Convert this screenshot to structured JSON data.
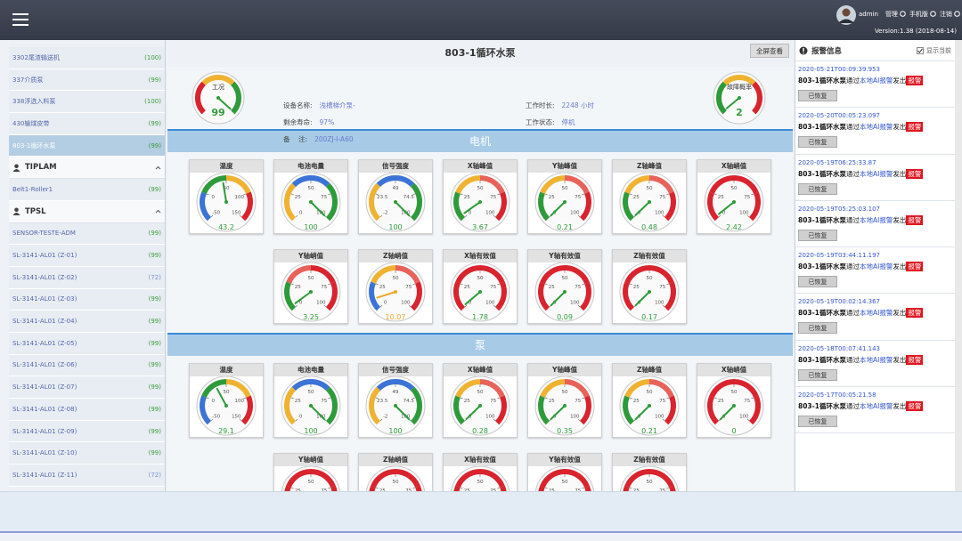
{
  "header": {
    "user": "admin",
    "links": [
      "管理",
      "手机版",
      "注销"
    ],
    "version": "Version:1.38 (2018-08-14)"
  },
  "sidebar": {
    "items": [
      {
        "name": "3302尾渣输送机",
        "count": "(100)"
      },
      {
        "name": "337介质泵",
        "count": "(99)"
      },
      {
        "name": "338浮选入料泵",
        "count": "(100)"
      },
      {
        "name": "430输煤皮带",
        "count": "(99)"
      },
      {
        "name": "803-1循环水泵",
        "count": "(99)",
        "selected": true
      }
    ],
    "groups": [
      {
        "name": "TIPLAM",
        "items": [
          {
            "name": "Belt1-Roller1",
            "count": "(99)"
          }
        ]
      },
      {
        "name": "TPSL",
        "items": [
          {
            "name": "SENSOR-TESTE-ADM",
            "count": "(99)"
          },
          {
            "name": "SL-3141-AL01 (Z-01)",
            "count": "(99)"
          },
          {
            "name": "SL-3141-AL01 (Z-02)",
            "count": "(72)",
            "color": "#7d8fcf"
          },
          {
            "name": "SL-3141-AL01 (Z-03)",
            "count": "(99)"
          },
          {
            "name": "SL-3141-AL01 (Z-04)",
            "count": "(99)"
          },
          {
            "name": "SL-3141-AL01 (Z-05)",
            "count": "(99)"
          },
          {
            "name": "SL-3141-AL01 (Z-06)",
            "count": "(99)"
          },
          {
            "name": "SL-3141-AL01 (Z-07)",
            "count": "(99)"
          },
          {
            "name": "SL-3141-AL01 (Z-08)",
            "count": "(99)"
          },
          {
            "name": "SL-3141-AL01 (Z-09)",
            "count": "(99)"
          },
          {
            "name": "SL-3141-AL01 (Z-10)",
            "count": "(99)"
          },
          {
            "name": "SL-3141-AL01 (Z-11)",
            "count": "(72)",
            "color": "#7d8fcf"
          }
        ]
      }
    ]
  },
  "device": {
    "title": "803-1循环水泵",
    "fullscreen": "全屏查看",
    "fields_left": [
      {
        "label": "设备名称:",
        "value": "浅槽梯介泵-"
      },
      {
        "label": "剩余寿命:",
        "value": "97%"
      },
      {
        "label": "备    注:",
        "value": "200ZJ-I-A60"
      }
    ],
    "fields_right": [
      {
        "label": "工作时长:",
        "value": "2248 小时"
      },
      {
        "label": "工作状态:",
        "value": "停机"
      }
    ],
    "status_gauges": [
      {
        "label": "工况",
        "value": 99,
        "range": [
          0,
          100
        ],
        "bands": [
          "#d9232d",
          "#efb331",
          "#2e9b3a"
        ]
      },
      {
        "label": "故障概率",
        "value": 2,
        "range": [
          0,
          100
        ],
        "bands": [
          "#2e9b3a",
          "#efb331",
          "#d9232d"
        ]
      }
    ]
  },
  "sections": [
    {
      "title": "电机",
      "gauges": [
        {
          "label": "温度",
          "value": 43.2,
          "range": [
            -50,
            150
          ],
          "ticks": [
            -50,
            0,
            50,
            100,
            150
          ],
          "bands": [
            "#3b73d6",
            "#2e9b3a",
            "#efb331",
            "#d9232d"
          ]
        },
        {
          "label": "电池电量",
          "value": 100,
          "range": [
            0,
            100
          ],
          "ticks": [
            0,
            25,
            50,
            75,
            100
          ],
          "bands": [
            "#efb331",
            "#3b73d6",
            "#2e9b3a"
          ]
        },
        {
          "label": "信号强度",
          "value": 100,
          "range": [
            -2,
            100
          ],
          "ticks": [
            -2,
            23.5,
            49,
            74.5,
            100
          ],
          "bands": [
            "#efb331",
            "#3b73d6",
            "#2e9b3a"
          ]
        },
        {
          "label": "X轴峰值",
          "value": 3.67,
          "range": [
            0,
            100
          ],
          "ticks": [
            0,
            25,
            50,
            75,
            100
          ],
          "bands": [
            "#2e9b3a",
            "#efb331",
            "#e8625a",
            "#d9232d"
          ]
        },
        {
          "label": "Y轴峰值",
          "value": 0.21,
          "range": [
            0,
            100
          ],
          "ticks": [
            0,
            25,
            50,
            75,
            100
          ],
          "bands": [
            "#2e9b3a",
            "#efb331",
            "#e8625a",
            "#d9232d"
          ]
        },
        {
          "label": "Z轴峰值",
          "value": 0.48,
          "range": [
            0,
            100
          ],
          "ticks": [
            0,
            25,
            50,
            75,
            100
          ],
          "bands": [
            "#2e9b3a",
            "#efb331",
            "#e8625a",
            "#d9232d"
          ]
        },
        {
          "label": "X轴峭值",
          "value": 2.42,
          "range": [
            0,
            100
          ],
          "ticks": [
            0,
            25,
            50,
            75,
            100
          ],
          "bands": [
            "#d9232d",
            "#d9232d",
            "#d9232d",
            "#d9232d"
          ]
        },
        {
          "label": "Y轴峭值",
          "value": 3.25,
          "range": [
            0,
            100
          ],
          "ticks": [
            0,
            25,
            50,
            75,
            100
          ],
          "bands": [
            "#2e9b3a",
            "#e8625a",
            "#d9232d",
            "#d9232d"
          ]
        },
        {
          "label": "Z轴峭值",
          "value": 10.07,
          "range": [
            0,
            100
          ],
          "ticks": [
            0,
            25,
            50,
            75,
            100
          ],
          "bands": [
            "#3b73d6",
            "#efb331",
            "#e8625a",
            "#d9232d"
          ],
          "color": "#efa92a"
        },
        {
          "label": "X轴有效值",
          "value": 1.78,
          "range": [
            0,
            100
          ],
          "ticks": [
            0,
            25,
            50,
            75,
            100
          ],
          "bands": [
            "#d9232d",
            "#d9232d",
            "#d9232d",
            "#d9232d"
          ]
        },
        {
          "label": "Y轴有效值",
          "value": 0.09,
          "range": [
            0,
            100
          ],
          "ticks": [
            0,
            25,
            50,
            75,
            100
          ],
          "bands": [
            "#d9232d",
            "#d9232d",
            "#d9232d",
            "#d9232d"
          ]
        },
        {
          "label": "Z轴有效值",
          "value": 0.17,
          "range": [
            0,
            100
          ],
          "ticks": [
            0,
            25,
            50,
            75,
            100
          ],
          "bands": [
            "#d9232d",
            "#d9232d",
            "#d9232d",
            "#d9232d"
          ]
        }
      ]
    },
    {
      "title": "泵",
      "gauges": [
        {
          "label": "温度",
          "value": 29.1,
          "range": [
            -50,
            150
          ],
          "ticks": [
            -50,
            0,
            50,
            100,
            150
          ],
          "bands": [
            "#3b73d6",
            "#2e9b3a",
            "#efb331",
            "#d9232d"
          ]
        },
        {
          "label": "电池电量",
          "value": 100,
          "range": [
            0,
            100
          ],
          "ticks": [
            0,
            25,
            50,
            75,
            100
          ],
          "bands": [
            "#efb331",
            "#3b73d6",
            "#2e9b3a"
          ]
        },
        {
          "label": "信号强度",
          "value": 100,
          "range": [
            -2,
            100
          ],
          "ticks": [
            -2,
            23.5,
            49,
            74.5,
            100
          ],
          "bands": [
            "#efb331",
            "#3b73d6",
            "#2e9b3a"
          ]
        },
        {
          "label": "X轴峰值",
          "value": 0.28,
          "range": [
            0,
            100
          ],
          "ticks": [
            0,
            25,
            50,
            75,
            100
          ],
          "bands": [
            "#2e9b3a",
            "#efb331",
            "#e8625a",
            "#d9232d"
          ]
        },
        {
          "label": "Y轴峰值",
          "value": 0.35,
          "range": [
            0,
            100
          ],
          "ticks": [
            0,
            25,
            50,
            75,
            100
          ],
          "bands": [
            "#2e9b3a",
            "#efb331",
            "#e8625a",
            "#d9232d"
          ]
        },
        {
          "label": "Z轴峰值",
          "value": 0.21,
          "range": [
            0,
            100
          ],
          "ticks": [
            0,
            25,
            50,
            75,
            100
          ],
          "bands": [
            "#2e9b3a",
            "#efb331",
            "#e8625a",
            "#d9232d"
          ]
        },
        {
          "label": "X轴峭值",
          "value": 0,
          "range": [
            0,
            100
          ],
          "ticks": [
            0,
            25,
            50,
            75,
            100
          ],
          "bands": [
            "#d9232d",
            "#d9232d",
            "#d9232d",
            "#d9232d"
          ]
        },
        {
          "label": "Y轴峭值",
          "value": null,
          "range": [
            0,
            100
          ],
          "ticks": [
            0,
            25,
            50,
            75,
            100
          ],
          "bands": [
            "#d9232d",
            "#d9232d",
            "#d9232d",
            "#d9232d"
          ]
        },
        {
          "label": "Z轴峭值",
          "value": null,
          "range": [
            0,
            100
          ],
          "ticks": [
            0,
            25,
            50,
            75,
            100
          ],
          "bands": [
            "#d9232d",
            "#d9232d",
            "#d9232d",
            "#d9232d"
          ]
        },
        {
          "label": "X轴有效值",
          "value": null,
          "range": [
            0,
            100
          ],
          "ticks": [
            0,
            25,
            50,
            75,
            100
          ],
          "bands": [
            "#d9232d",
            "#d9232d",
            "#d9232d",
            "#d9232d"
          ]
        },
        {
          "label": "Y轴有效值",
          "value": null,
          "range": [
            0,
            100
          ],
          "ticks": [
            0,
            25,
            50,
            75,
            100
          ],
          "bands": [
            "#d9232d",
            "#d9232d",
            "#d9232d",
            "#d9232d"
          ]
        },
        {
          "label": "Z轴有效值",
          "value": null,
          "range": [
            0,
            100
          ],
          "ticks": [
            0,
            25,
            50,
            75,
            100
          ],
          "bands": [
            "#d9232d",
            "#d9232d",
            "#d9232d",
            "#d9232d"
          ]
        }
      ]
    }
  ],
  "alerts": {
    "title": "报警信息",
    "toggle": "显示当前",
    "items": [
      {
        "time": "2020-05-21T00:09:39.953",
        "parts": [
          "803-1循环水泵",
          "通过",
          "本地AI报警",
          "发出"
        ],
        "badge": "报警",
        "button": "已恢复"
      },
      {
        "time": "2020-05-20T00:05:23.097",
        "parts": [
          "803-1循环水泵",
          "通过",
          "本地AI报警",
          "发出"
        ],
        "badge": "报警",
        "button": "已恢复"
      },
      {
        "time": "2020-05-19T06:25:33.87",
        "parts": [
          "803-1循环水泵",
          "通过",
          "本地AI报警",
          "发出"
        ],
        "badge": "报警",
        "button": "已恢复"
      },
      {
        "time": "2020-05-19T05:25:03.107",
        "parts": [
          "803-1循环水泵",
          "通过",
          "本地AI报警",
          "发出"
        ],
        "badge": "报警",
        "button": "已恢复"
      },
      {
        "time": "2020-05-19T03:44:11.197",
        "parts": [
          "803-1循环水泵",
          "通过",
          "本地AI报警",
          "发出"
        ],
        "badge": "报警",
        "button": "已恢复"
      },
      {
        "time": "2020-05-19T00:02:14.367",
        "parts": [
          "803-1循环水泵",
          "通过",
          "本地AI报警",
          "发出"
        ],
        "badge": "报警",
        "button": "已恢复"
      },
      {
        "time": "2020-05-18T00:07:41.143",
        "parts": [
          "803-1循环水泵",
          "通过",
          "本地AI报警",
          "发出"
        ],
        "badge": "报警",
        "button": "已恢复"
      },
      {
        "time": "2020-05-17T00:05:21.58",
        "parts": [
          "803-1循环水泵",
          "通过",
          "本地AI报警",
          "发出"
        ],
        "badge": "报警",
        "button": "已恢复"
      }
    ]
  }
}
